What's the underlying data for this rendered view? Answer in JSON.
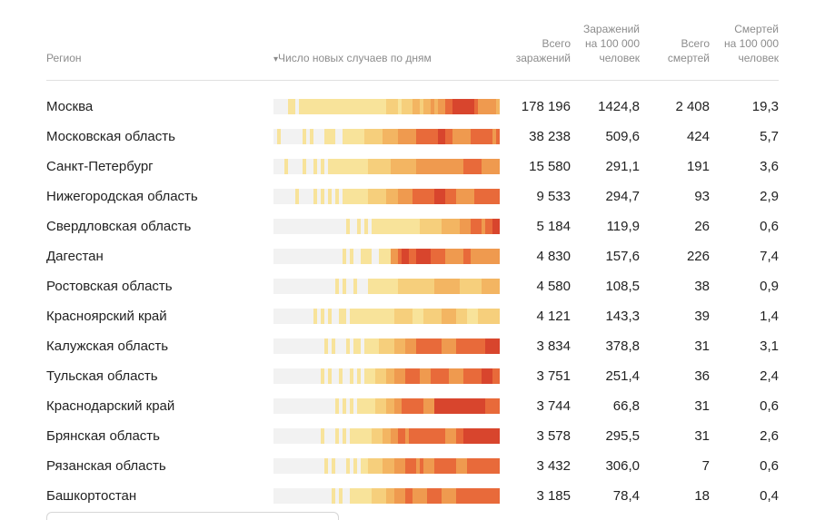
{
  "headers": {
    "region": "Регион",
    "cases_by_day": "Число новых случаев по дням",
    "sort_arrow": "▾",
    "total_cases": [
      "Всего",
      "заражений"
    ],
    "cases_per_100k": [
      "Заражений",
      "на 100 000",
      "человек"
    ],
    "total_deaths": [
      "Всего",
      "смертей"
    ],
    "deaths_per_100k": [
      "Смертей",
      "на 100 000",
      "человек"
    ]
  },
  "colors": {
    "empty": "#f2f2f2",
    "scale": [
      "#f8e39a",
      "#f6cf7c",
      "#f3b562",
      "#ef9a4f",
      "#e86a3a",
      "#d8452d",
      "#b42a22"
    ]
  },
  "rows": [
    {
      "region": "Москва",
      "total": "178 196",
      "per100k": "1424,8",
      "deaths": "2 408",
      "deaths100k": "19,3",
      "bar": "00001101111111111111111111111112221222332334344556666665444443"
    },
    {
      "region": "Московская область",
      "total": "38 238",
      "per100k": "509,6",
      "deaths": "424",
      "deaths100k": "5,7",
      "bar": "01000000101000111001111112222233334444455555566554444455555545"
    },
    {
      "region": "Санкт-Петербург",
      "total": "15 580",
      "per100k": "291,1",
      "deaths": "191",
      "deaths100k": "3,6",
      "bar": "00010000100101011111111111222222333333344444444444445555544444"
    },
    {
      "region": "Нижегородская область",
      "total": "9 533",
      "per100k": "294,7",
      "deaths": "93",
      "deaths100k": "2,9",
      "bar": "00000010000101010101111111222223334444555555666555444445555555"
    },
    {
      "region": "Свердловская область",
      "total": "5 184",
      "per100k": "119,9",
      "deaths": "26",
      "deaths100k": "0,6",
      "bar": "00000000000000000000100101011111111111112222223333344455545566"
    },
    {
      "region": "Дагестан",
      "total": "4 830",
      "per100k": "157,6",
      "deaths": "226",
      "deaths100k": "7,4",
      "bar": "00000000000000000001010011100111445665566665555444445544444444"
    },
    {
      "region": "Ростовская область",
      "total": "4 580",
      "per100k": "108,5",
      "deaths": "38",
      "deaths100k": "0,9",
      "bar": "00000000000000000101001000111111112222222222333333322222233333"
    },
    {
      "region": "Красноярский край",
      "total": "4 121",
      "per100k": "143,3",
      "deaths": "39",
      "deaths100k": "1,4",
      "bar": "00000000000101010011011111111111122222111222223333222111222222"
    },
    {
      "region": "Калужская область",
      "total": "3 834",
      "per100k": "378,8",
      "deaths": "31",
      "deaths100k": "3,1",
      "bar": "00000000000000101000101101111222233344455555554444555555556666"
    },
    {
      "region": "Тульская область",
      "total": "3 751",
      "per100k": "251,4",
      "deaths": "36",
      "deaths100k": "2,4",
      "bar": "00000000000001010010010101112223344455554445555544445555566655"
    },
    {
      "region": "Краснодарский край",
      "total": "3 744",
      "per100k": "66,8",
      "deaths": "31",
      "deaths100k": "0,6",
      "bar": "00000000000000000101010111112223344555555444666666666666665555"
    },
    {
      "region": "Брянская область",
      "total": "3 578",
      "per100k": "295,5",
      "deaths": "31",
      "deaths100k": "2,6",
      "bar": "00000000000001000101011111122233445545555555555444556666666666"
    },
    {
      "region": "Рязанская область",
      "total": "3 432",
      "per100k": "306,0",
      "deaths": "7",
      "deaths100k": "0,6",
      "bar": "00000000000000101000101011222233344455545444555555444555555555"
    },
    {
      "region": "Башкортостан",
      "total": "3 185",
      "per100k": "78,4",
      "deaths": "18",
      "deaths100k": "0,4",
      "bar": "00000000000000001010011111122223344455444455554444555555555555"
    }
  ]
}
